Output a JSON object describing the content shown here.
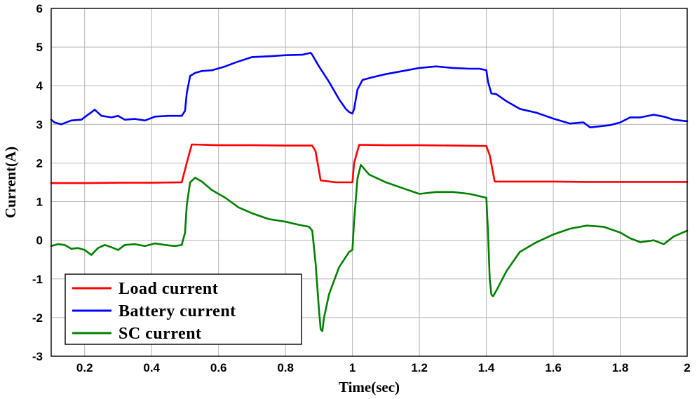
{
  "chart_data": {
    "type": "line",
    "title": "",
    "xlabel": "Time(sec)",
    "ylabel": "Current(A)",
    "xlim": [
      0.1,
      2.0
    ],
    "ylim": [
      -3,
      6
    ],
    "xticks": [
      0.2,
      0.4,
      0.6,
      0.8,
      1.0,
      1.2,
      1.4,
      1.6,
      1.8,
      2.0
    ],
    "xtick_labels": [
      "0.2",
      "0.4",
      "0.6",
      "0.8",
      "1",
      "1.2",
      "1.4",
      "1.6",
      "1.8",
      "2"
    ],
    "yticks": [
      -3,
      -2,
      -1,
      0,
      1,
      2,
      3,
      4,
      5,
      6
    ],
    "ytick_labels": [
      "-3",
      "-2",
      "-1",
      "0",
      "1",
      "2",
      "3",
      "4",
      "5",
      "6"
    ],
    "grid": true,
    "legend_position": "bottom-left",
    "series": [
      {
        "name": "Load current",
        "color": "#ff0000",
        "x": [
          0.1,
          0.2,
          0.3,
          0.4,
          0.49,
          0.505,
          0.52,
          0.6,
          0.7,
          0.8,
          0.88,
          0.89,
          0.905,
          0.95,
          1.0,
          1.005,
          1.02,
          1.1,
          1.2,
          1.3,
          1.4,
          1.41,
          1.425,
          1.5,
          1.6,
          1.7,
          1.8,
          1.9,
          2.0
        ],
        "y": [
          1.48,
          1.48,
          1.49,
          1.49,
          1.5,
          2.0,
          2.48,
          2.46,
          2.46,
          2.45,
          2.45,
          2.3,
          1.55,
          1.5,
          1.5,
          2.0,
          2.47,
          2.46,
          2.46,
          2.45,
          2.44,
          2.2,
          1.52,
          1.52,
          1.52,
          1.51,
          1.51,
          1.51,
          1.51
        ]
      },
      {
        "name": "Battery current",
        "color": "#0000ff",
        "x": [
          0.1,
          0.11,
          0.13,
          0.16,
          0.19,
          0.21,
          0.23,
          0.25,
          0.28,
          0.3,
          0.32,
          0.35,
          0.38,
          0.41,
          0.45,
          0.49,
          0.5,
          0.505,
          0.515,
          0.53,
          0.55,
          0.58,
          0.62,
          0.65,
          0.7,
          0.75,
          0.8,
          0.85,
          0.875,
          0.88,
          0.9,
          0.93,
          0.96,
          0.98,
          0.99,
          1.0,
          1.005,
          1.015,
          1.03,
          1.06,
          1.1,
          1.15,
          1.2,
          1.25,
          1.3,
          1.35,
          1.38,
          1.4,
          1.405,
          1.415,
          1.43,
          1.46,
          1.5,
          1.55,
          1.6,
          1.65,
          1.69,
          1.71,
          1.74,
          1.77,
          1.8,
          1.83,
          1.86,
          1.9,
          1.93,
          1.96,
          2.0
        ],
        "y": [
          3.12,
          3.05,
          3.0,
          3.1,
          3.12,
          3.25,
          3.38,
          3.22,
          3.18,
          3.22,
          3.12,
          3.14,
          3.1,
          3.2,
          3.22,
          3.22,
          3.35,
          3.8,
          4.25,
          4.33,
          4.38,
          4.4,
          4.5,
          4.6,
          4.74,
          4.76,
          4.79,
          4.8,
          4.85,
          4.8,
          4.5,
          4.1,
          3.65,
          3.4,
          3.32,
          3.28,
          3.4,
          3.9,
          4.15,
          4.22,
          4.3,
          4.38,
          4.46,
          4.5,
          4.46,
          4.44,
          4.44,
          4.4,
          4.1,
          3.8,
          3.78,
          3.6,
          3.4,
          3.3,
          3.15,
          3.02,
          3.05,
          2.92,
          2.95,
          2.98,
          3.05,
          3.18,
          3.18,
          3.25,
          3.2,
          3.12,
          3.08
        ]
      },
      {
        "name": "SC current",
        "color": "#008000",
        "x": [
          0.1,
          0.12,
          0.14,
          0.16,
          0.18,
          0.2,
          0.22,
          0.24,
          0.26,
          0.28,
          0.3,
          0.32,
          0.35,
          0.38,
          0.41,
          0.44,
          0.47,
          0.49,
          0.5,
          0.505,
          0.515,
          0.53,
          0.55,
          0.58,
          0.62,
          0.66,
          0.7,
          0.75,
          0.8,
          0.84,
          0.87,
          0.88,
          0.89,
          0.9,
          0.905,
          0.91,
          0.915,
          0.93,
          0.96,
          0.99,
          1.0,
          1.005,
          1.015,
          1.025,
          1.05,
          1.1,
          1.15,
          1.2,
          1.25,
          1.3,
          1.35,
          1.4,
          1.405,
          1.41,
          1.415,
          1.42,
          1.43,
          1.46,
          1.5,
          1.55,
          1.6,
          1.65,
          1.7,
          1.75,
          1.8,
          1.83,
          1.86,
          1.9,
          1.93,
          1.96,
          2.0
        ],
        "y": [
          -0.15,
          -0.1,
          -0.12,
          -0.22,
          -0.2,
          -0.25,
          -0.38,
          -0.2,
          -0.12,
          -0.18,
          -0.25,
          -0.12,
          -0.1,
          -0.15,
          -0.08,
          -0.12,
          -0.15,
          -0.12,
          0.2,
          0.9,
          1.5,
          1.62,
          1.52,
          1.3,
          1.1,
          0.85,
          0.7,
          0.55,
          0.48,
          0.4,
          0.35,
          0.25,
          -0.6,
          -1.8,
          -2.3,
          -2.35,
          -2.0,
          -1.4,
          -0.7,
          -0.3,
          -0.25,
          0.5,
          1.6,
          1.95,
          1.7,
          1.5,
          1.35,
          1.2,
          1.25,
          1.25,
          1.2,
          1.1,
          0.2,
          -1.0,
          -1.4,
          -1.45,
          -1.3,
          -0.8,
          -0.3,
          -0.05,
          0.15,
          0.3,
          0.38,
          0.35,
          0.2,
          0.05,
          -0.05,
          0.0,
          -0.1,
          0.1,
          0.25
        ]
      }
    ]
  }
}
